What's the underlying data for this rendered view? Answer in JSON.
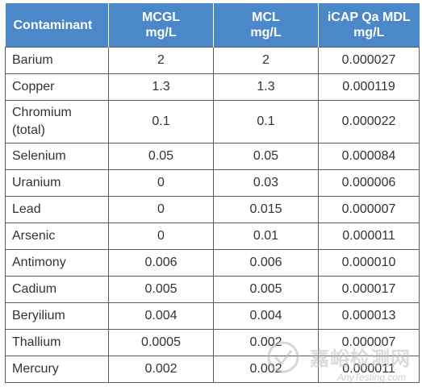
{
  "table": {
    "headers": [
      [
        "Contaminant"
      ],
      [
        "MCGL",
        "mg/L"
      ],
      [
        "MCL",
        "mg/L"
      ],
      [
        "iCAP Qa MDL",
        "mg/L"
      ]
    ],
    "rows": [
      {
        "name": [
          "Barium"
        ],
        "mcgl": "2",
        "mcl": "2",
        "mdl": "0.000027"
      },
      {
        "name": [
          "Copper"
        ],
        "mcgl": "1.3",
        "mcl": "1.3",
        "mdl": "0.000119"
      },
      {
        "name": [
          "Chromium",
          "(total)"
        ],
        "mcgl": "0.1",
        "mcl": "0.1",
        "mdl": "0.000022"
      },
      {
        "name": [
          "Selenium"
        ],
        "mcgl": "0.05",
        "mcl": "0.05",
        "mdl": "0.000084"
      },
      {
        "name": [
          "Uranium"
        ],
        "mcgl": "0",
        "mcl": "0.03",
        "mdl": "0.000006"
      },
      {
        "name": [
          "Lead"
        ],
        "mcgl": "0",
        "mcl": "0.015",
        "mdl": "0.000007"
      },
      {
        "name": [
          "Arsenic"
        ],
        "mcgl": "0",
        "mcl": "0.01",
        "mdl": "0.000011"
      },
      {
        "name": [
          "Antimony"
        ],
        "mcgl": "0.006",
        "mcl": "0.006",
        "mdl": "0.000010"
      },
      {
        "name": [
          "Cadium"
        ],
        "mcgl": "0.005",
        "mcl": "0.005",
        "mdl": "0.000017"
      },
      {
        "name": [
          "Beryilium"
        ],
        "mcgl": "0.004",
        "mcl": "0.004",
        "mdl": "0.000013"
      },
      {
        "name": [
          "Thallium"
        ],
        "mcgl": "0.0005",
        "mcl": "0.002",
        "mdl": "0.000007"
      },
      {
        "name": [
          "Mercury"
        ],
        "mcgl": "0.002",
        "mcl": "0.002",
        "mdl": "0.000011"
      }
    ]
  },
  "watermark": {
    "text": "嘉峪检测网",
    "sub": "AnyTesting.com"
  },
  "colors": {
    "header_bg": "#4a88c9",
    "header_text": "#ffffff",
    "border": "#5a5a5a",
    "body_text": "#333333"
  }
}
